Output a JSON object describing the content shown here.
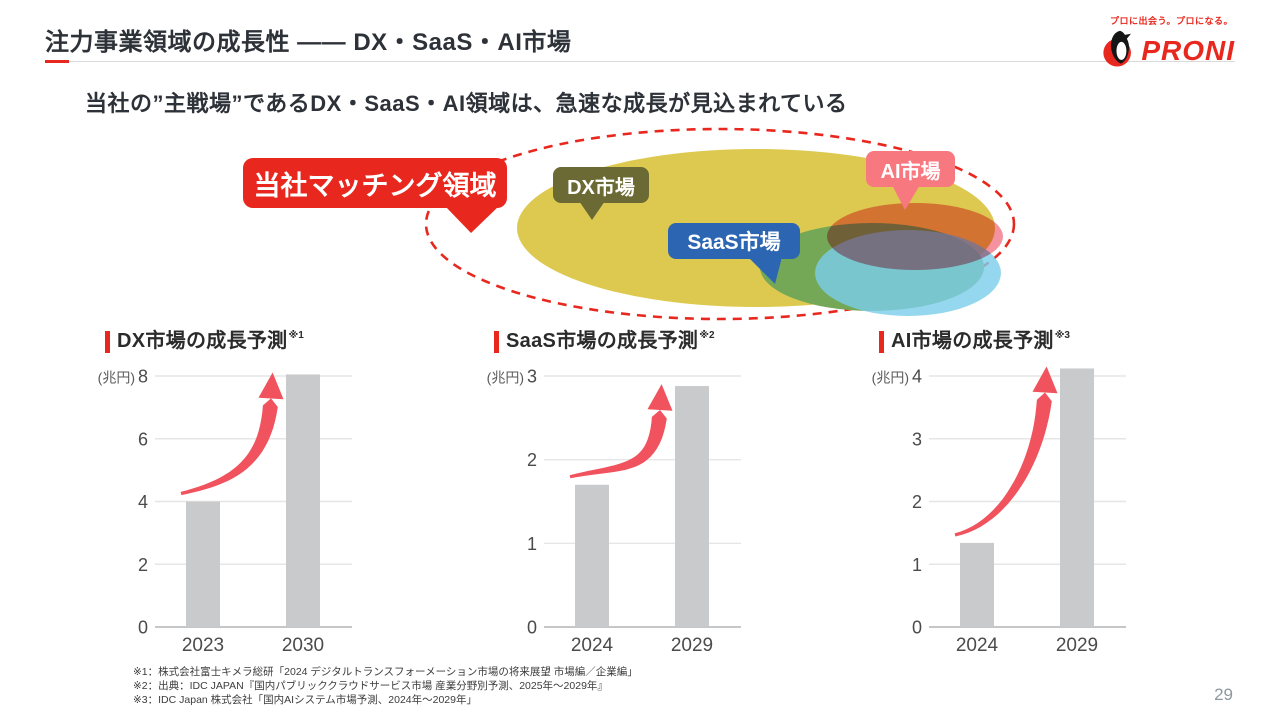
{
  "header": {
    "title": "注力事業領域の成長性 —— DX・SaaS・AI市場",
    "logo": {
      "tagline": "プロに出会う。プロになる。",
      "brand": "PRONI"
    },
    "page_number": "29"
  },
  "subtitle": "当社の”主戦場”であるDX・SaaS・AI領域は、急速な成長が見込まれている",
  "venn": {
    "outline_label": "当社マッチング領域",
    "labels": [
      {
        "id": "matching",
        "text": "当社マッチング領域",
        "color": "#e8281e"
      },
      {
        "id": "dx",
        "text": "DX市場",
        "color": "#6c6a34"
      },
      {
        "id": "saas",
        "text": "SaaS市場",
        "color": "#2c66b3"
      },
      {
        "id": "ai",
        "text": "AI市場",
        "color": "#f7787f"
      }
    ],
    "ellipse_colors": {
      "dx_yellow": "#ddc94f",
      "saas_green": "#74a857",
      "cloud_blue": "#7ccdec",
      "ai_pink": "#f492a0",
      "outline_red_dashed": "#e8281e"
    }
  },
  "chart_data": [
    {
      "type": "bar",
      "title": "DX市場の成長予測",
      "note": "※1",
      "unit": "(兆円)",
      "categories": [
        "2023",
        "2030"
      ],
      "values": [
        4.0,
        8.05
      ],
      "yticks": [
        0,
        2,
        4,
        6,
        8
      ],
      "ylim": [
        0,
        8.4
      ],
      "grid": true,
      "bar_color": "#c9cacc",
      "arrow_color": "#f0525e",
      "annotation": "growth-arrow"
    },
    {
      "type": "bar",
      "title": "SaaS市場の成長予測",
      "note": "※2",
      "unit": "(兆円)",
      "categories": [
        "2024",
        "2029"
      ],
      "values": [
        1.7,
        2.88
      ],
      "yticks": [
        0,
        1,
        2,
        3
      ],
      "ylim": [
        0,
        3.1
      ],
      "grid": true,
      "bar_color": "#c9cacc",
      "arrow_color": "#f0525e",
      "annotation": "growth-arrow"
    },
    {
      "type": "bar",
      "title": "AI市場の成長予測",
      "note": "※3",
      "unit": "(兆円)",
      "categories": [
        "2024",
        "2029"
      ],
      "values": [
        1.34,
        4.12
      ],
      "yticks": [
        0,
        1,
        2,
        3,
        4
      ],
      "ylim": [
        0,
        4.3
      ],
      "grid": true,
      "bar_color": "#c9cacc",
      "arrow_color": "#f0525e",
      "annotation": "growth-arrow"
    }
  ],
  "footnotes": [
    "※1：株式会社富士キメラ総研「2024 デジタルトランスフォーメーション市場の将来展望 市場編／企業編」",
    "※2：出典：IDC JAPAN『国内パブリッククラウドサービス市場 産業分野別予測、2025年～2029年』",
    "※3：IDC Japan 株式会社「国内AIシステム市場予測、2024年～2029年」"
  ]
}
